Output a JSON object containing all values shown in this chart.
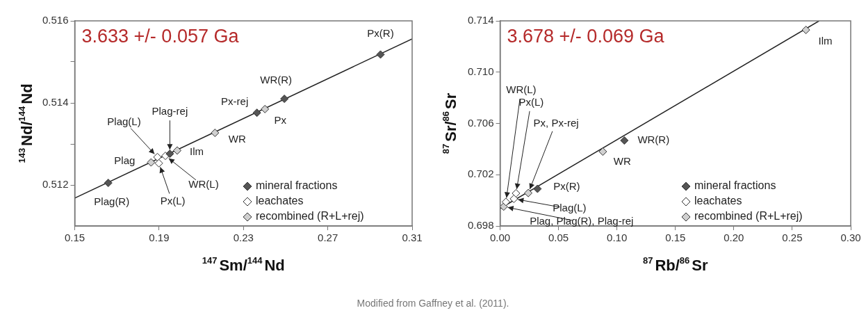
{
  "chart_data": [
    {
      "type": "scatter",
      "xlabel": "$^{147}$Sm/$^{144}$Nd",
      "ylabel": "$^{143}$Nd/$^{144}$Nd",
      "xlim": [
        0.15,
        0.31
      ],
      "ylim": [
        0.511,
        0.516
      ],
      "xticks": [
        0.15,
        0.19,
        0.23,
        0.27,
        0.31
      ],
      "yticks": [
        0.512,
        {
          "value": 0.513,
          "label": null
        },
        0.514,
        {
          "value": 0.515,
          "label": null
        },
        0.516
      ],
      "marker": "diamond",
      "legend": "bottom right",
      "series": [
        {
          "name": "mineral fractions",
          "color": "#555555",
          "x": [
            0.295,
            0.2494,
            0.2364,
            0.1951,
            0.1659
          ],
          "values": [
            0.51518,
            0.5141,
            0.51376,
            0.51276,
            0.51205
          ]
        },
        {
          "name": "leachates",
          "color": "#ffffff",
          "x": [
            0.193,
            0.1892,
            0.1899
          ],
          "values": [
            0.51271,
            0.51268,
            0.51253
          ]
        },
        {
          "name": "recombined (R+L+rej)",
          "color": "#d0d0d0",
          "x": [
            0.2402,
            0.2165,
            0.1986,
            0.1862
          ],
          "values": [
            0.51385,
            0.51327,
            0.51284,
            0.51255
          ]
        },
        {
          "type": "line",
          "marker": "none",
          "color": "#222222",
          "x": [
            0.15,
            0.31
          ],
          "values": [
            0.51168,
            0.51556
          ]
        }
      ],
      "annotations": [
        "3.633 +/- 0.057 Ga",
        {
          "text": "Px(R)",
          "x": 0.295,
          "y": 0.51518
        },
        {
          "text": "WR(R)",
          "x": 0.2494,
          "y": 0.5141
        },
        {
          "text": "Px-rej",
          "x": 0.2364,
          "y": 0.51376
        },
        {
          "text": "Px",
          "x": 0.2402,
          "y": 0.51385
        },
        {
          "text": "WR",
          "x": 0.2165,
          "y": 0.51327
        },
        {
          "text": "Ilm",
          "x": 0.1986,
          "y": 0.51284
        },
        {
          "text": "Plag-rej",
          "x": 0.1951,
          "y": 0.51276
        },
        {
          "text": "WR(L)",
          "x": 0.193,
          "y": 0.51271
        },
        {
          "text": "Plag(L)",
          "x": 0.1892,
          "y": 0.51268
        },
        {
          "text": "Px(L)",
          "x": 0.1899,
          "y": 0.51253
        },
        {
          "text": "Plag",
          "x": 0.1862,
          "y": 0.51255
        },
        {
          "text": "Plag(R)",
          "x": 0.1659,
          "y": 0.51205
        }
      ]
    },
    {
      "type": "scatter",
      "xlabel": "$^{87}$Rb/$^{86}$Sr",
      "ylabel": "$^{87}$Sr/$^{86}$Sr",
      "xlim": [
        0,
        0.3
      ],
      "ylim": [
        0.698,
        0.714
      ],
      "xticks": [
        {
          "value": 0,
          "label": "0.00"
        },
        0.05,
        {
          "value": 0.1,
          "label": "0.10"
        },
        0.15,
        {
          "value": 0.2,
          "label": "0.20"
        },
        0.25,
        {
          "value": 0.3,
          "label": "0.30"
        }
      ],
      "yticks": [
        0.698,
        0.702,
        0.706,
        {
          "value": 0.71,
          "label": "0.710"
        },
        0.714
      ],
      "marker": "diamond",
      "legend": "bottom right",
      "series": [
        {
          "name": "mineral fractions",
          "color": "#555555",
          "x": [
            0.1063,
            0.032
          ],
          "values": [
            0.70467,
            0.7009
          ]
        },
        {
          "name": "leachates",
          "color": "#ffffff",
          "x": [
            0.0136,
            0.0118,
            0.005
          ],
          "values": [
            0.70055,
            0.70012,
            0.69988
          ]
        },
        {
          "name": "recombined (R+L+rej)",
          "color": "#d0d0d0",
          "x": [
            0.2617,
            0.0879,
            0.0241,
            0.0031
          ],
          "values": [
            0.71329,
            0.7038,
            0.70057,
            0.69951
          ]
        },
        {
          "type": "line",
          "marker": "none",
          "color": "#222222",
          "x": [
            0,
            0.273
          ],
          "values": [
            0.69937,
            0.714
          ]
        }
      ],
      "annotations": [
        "3.678 +/- 0.069 Ga",
        {
          "text": "Ilm",
          "x": 0.2617,
          "y": 0.71329
        },
        {
          "text": "WR(R)",
          "x": 0.1063,
          "y": 0.70467
        },
        {
          "text": "WR",
          "x": 0.0879,
          "y": 0.7038
        },
        {
          "text": "Px(R)",
          "x": 0.032,
          "y": 0.7009
        },
        {
          "text": "Px, Px-rej",
          "x": 0.0241,
          "y": 0.70057
        },
        {
          "text": "Px(L)",
          "x": 0.0136,
          "y": 0.70055
        },
        {
          "text": "WR(L)",
          "x": 0.005,
          "y": 0.69988
        },
        {
          "text": "Plag(L)",
          "x": 0.0118,
          "y": 0.70012
        },
        {
          "text": "Plag, Plag(R), Plag-rej",
          "x": 0.0031,
          "y": 0.69951
        },
        "Modified from Gaffney et al. (2011)."
      ]
    }
  ]
}
